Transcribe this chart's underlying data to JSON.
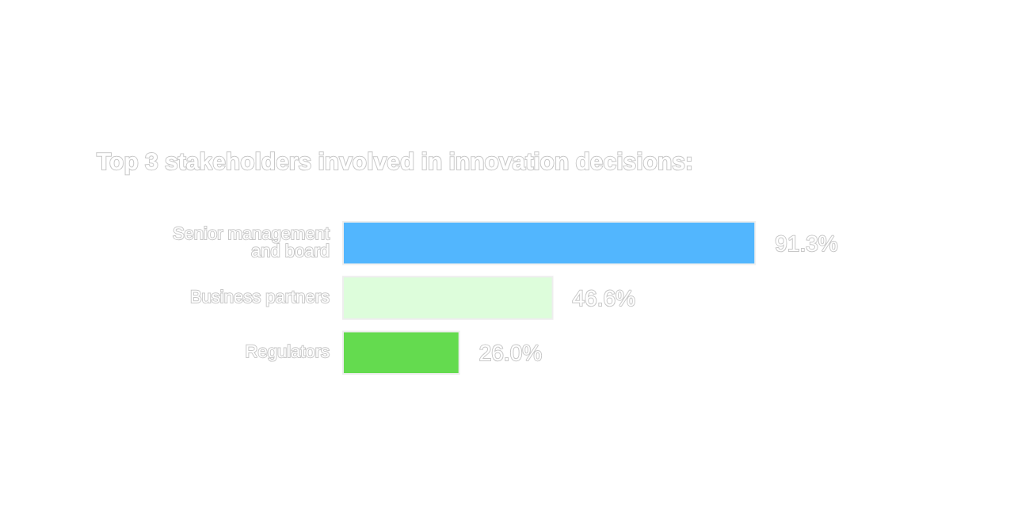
{
  "chart_data": {
    "type": "bar",
    "orientation": "horizontal",
    "title": "Top 3 stakeholders involved in innovation decisions:",
    "categories": [
      "Senior management\nand board",
      "Business partners",
      "Regulators"
    ],
    "values": [
      91.3,
      46.6,
      26.0
    ],
    "colors": [
      "#52b6fe",
      "#ddfddb",
      "#64db4f"
    ],
    "value_labels": [
      "91.3%",
      "46.6%",
      "26.0%"
    ],
    "tick_labels": "y"
  }
}
